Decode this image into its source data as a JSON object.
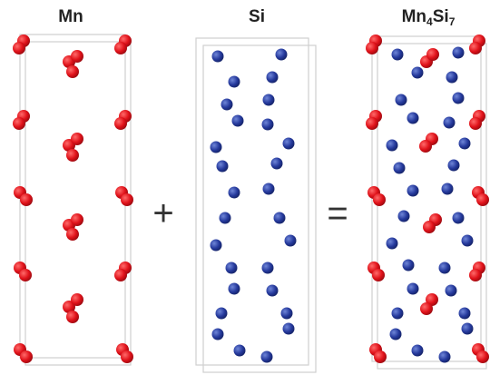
{
  "panels": [
    {
      "label": "Mn"
    },
    {
      "label": "Si"
    },
    {
      "label_parts": [
        "Mn",
        "4",
        "Si",
        "7"
      ]
    }
  ],
  "operators": [
    "+",
    "="
  ]
}
